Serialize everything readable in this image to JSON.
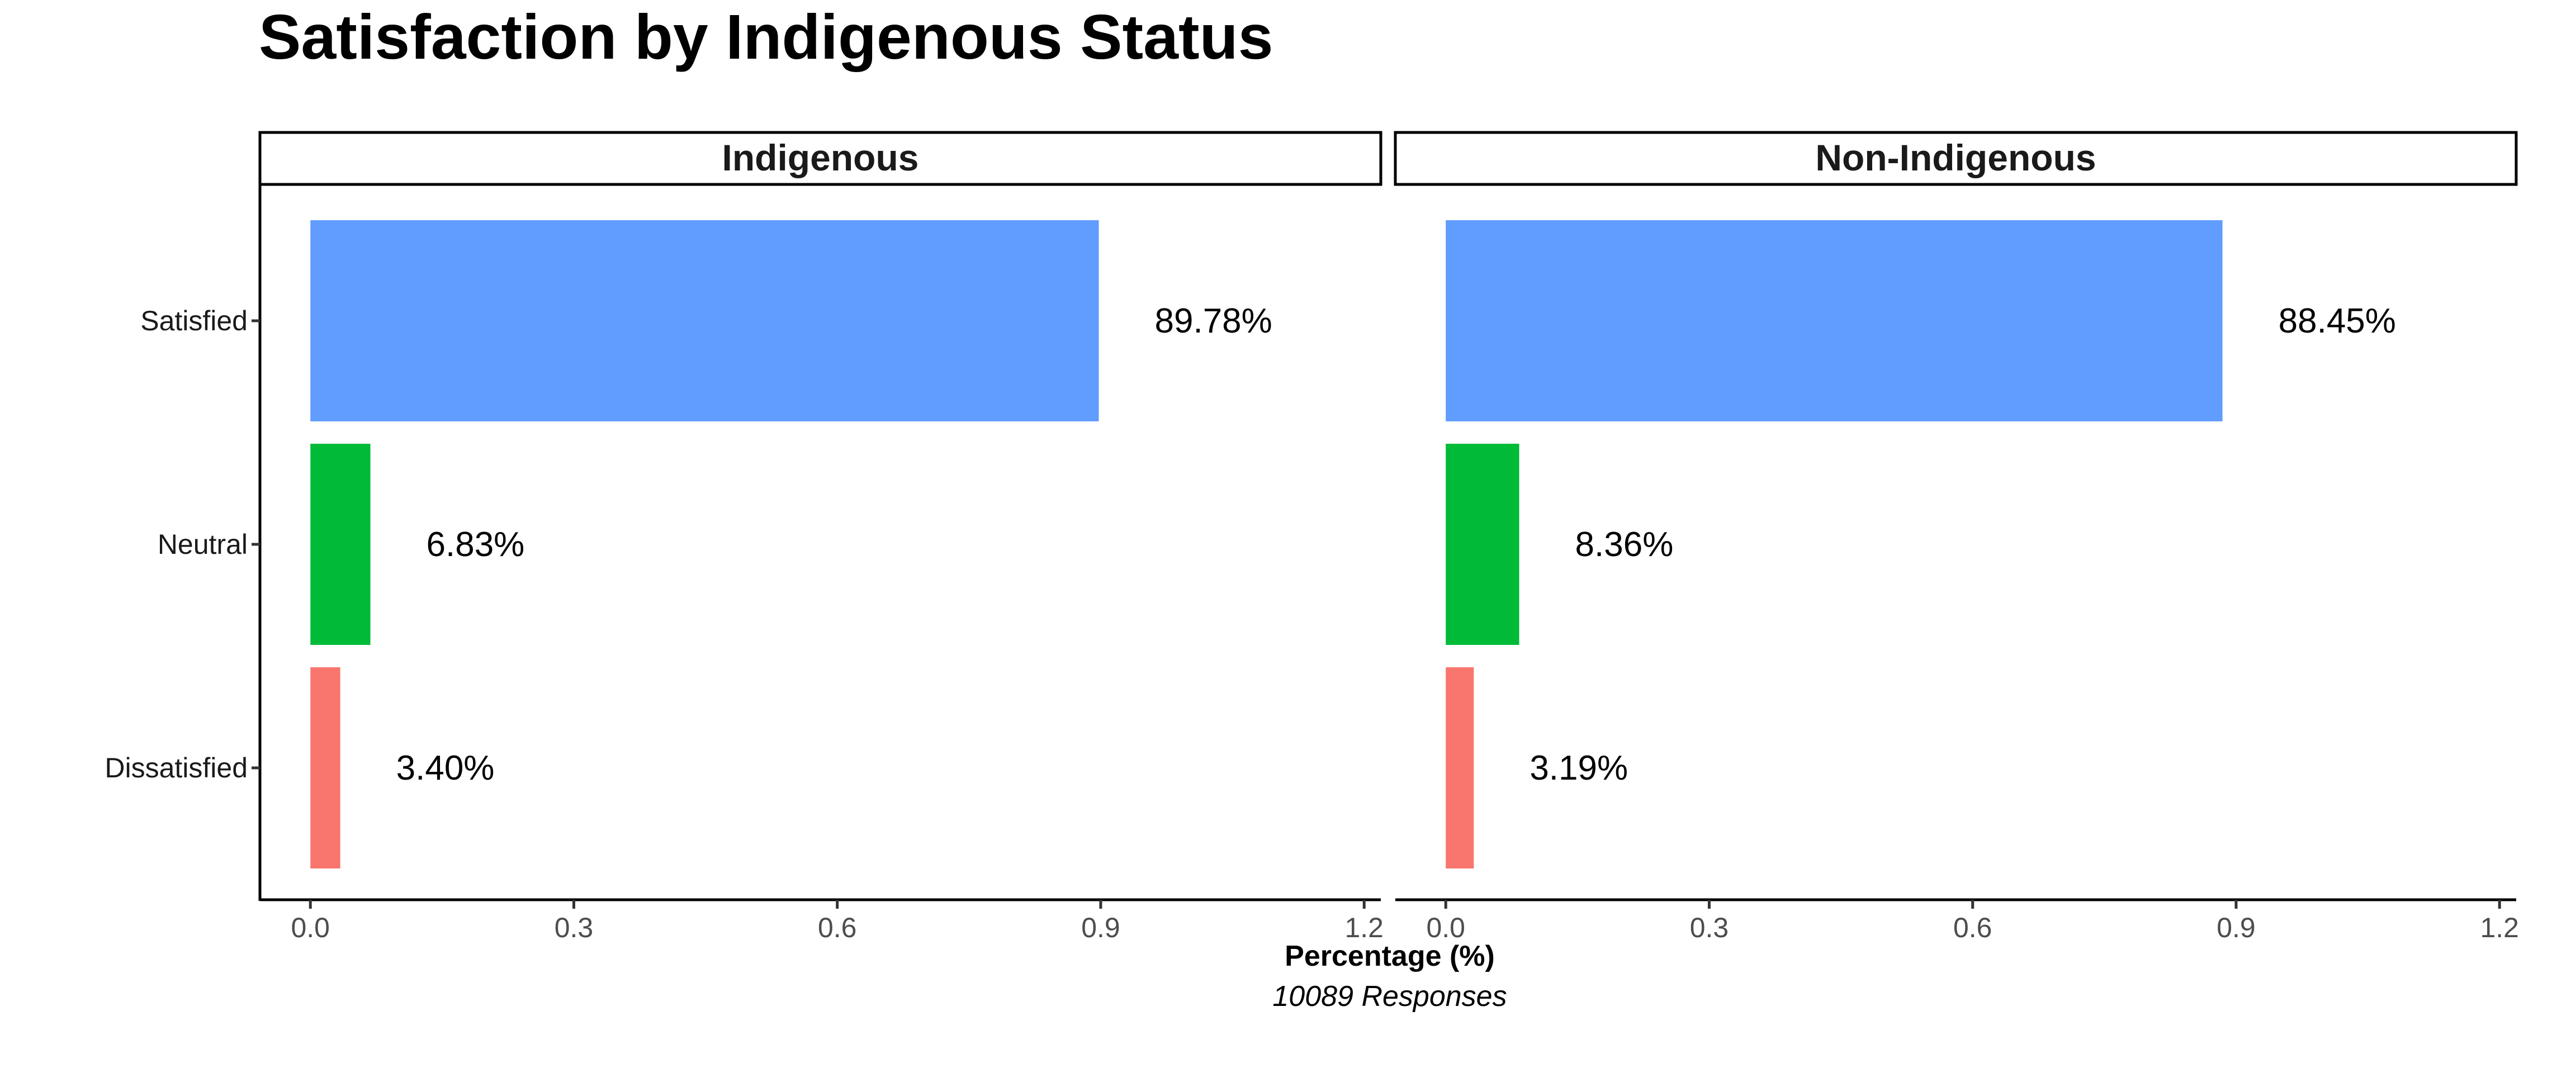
{
  "chart_data": {
    "type": "bar",
    "orientation": "horizontal",
    "title": "Satisfaction by Indigenous Status",
    "xlabel": "Percentage (%)",
    "caption": "10089 Responses",
    "categories": [
      "Satisfied",
      "Neutral",
      "Dissatisfied"
    ],
    "category_colors": {
      "Satisfied": "#619CFF",
      "Neutral": "#00BA38",
      "Dissatisfied": "#F8766D"
    },
    "xlim": [
      0,
      1.2
    ],
    "x_ticks": [
      "0.0",
      "0.3",
      "0.6",
      "0.9",
      "1.2"
    ],
    "x_tick_values": [
      0,
      0.3,
      0.6,
      0.9,
      1.2
    ],
    "grid": false,
    "legend": "none",
    "panels": [
      {
        "name": "Indigenous",
        "values": [
          0.8978,
          0.0683,
          0.034
        ],
        "labels": [
          "89.78%",
          "6.83%",
          "3.40%"
        ]
      },
      {
        "name": "Non-Indigenous",
        "values": [
          0.8845,
          0.0836,
          0.0319
        ],
        "labels": [
          "88.45%",
          "8.36%",
          "3.19%"
        ]
      }
    ]
  }
}
